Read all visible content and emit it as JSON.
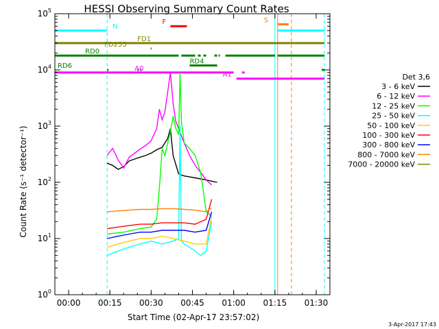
{
  "chart_data": {
    "type": "line",
    "title": "HESSI Observing Summary Count Rates",
    "xlabel": "Start Time (02-Apr-17 23:57:02)",
    "ylabel": "Count Rate (s⁻¹ detector⁻¹)",
    "x_unit": "minutes after 00:00 (03-Apr-17)",
    "xlim": [
      -5,
      95
    ],
    "ylim": [
      1,
      100000
    ],
    "y_scale": "log",
    "grid": false,
    "legend_position": "right",
    "legend_title": "Det 3,6",
    "x_ticks": [
      {
        "value": 0,
        "label": "00:00"
      },
      {
        "value": 15,
        "label": "00:15"
      },
      {
        "value": 30,
        "label": "00:30"
      },
      {
        "value": 45,
        "label": "00:45"
      },
      {
        "value": 60,
        "label": "01:00"
      },
      {
        "value": 75,
        "label": "01:15"
      },
      {
        "value": 90,
        "label": "01:30"
      }
    ],
    "y_ticks": [
      {
        "value": 1,
        "exp": "0"
      },
      {
        "value": 10,
        "exp": "1"
      },
      {
        "value": 100,
        "exp": "2"
      },
      {
        "value": 1000,
        "exp": "3"
      },
      {
        "value": 10000,
        "exp": "4"
      },
      {
        "value": 100000,
        "exp": "5"
      }
    ],
    "series": [
      {
        "name": "3 - 6 keV",
        "color": "#000000",
        "x": [
          14,
          16,
          18,
          20,
          22,
          24,
          26,
          28,
          30,
          32,
          34,
          36,
          37,
          38,
          40,
          42,
          44,
          46,
          48,
          50,
          52,
          54
        ],
        "y": [
          220,
          200,
          170,
          190,
          240,
          260,
          280,
          300,
          330,
          380,
          420,
          600,
          900,
          300,
          140,
          130,
          125,
          120,
          115,
          110,
          105,
          100
        ]
      },
      {
        "name": "6 - 12 keV",
        "color": "#ff00ff",
        "x": [
          14,
          15,
          16,
          17,
          18,
          20,
          22,
          24,
          26,
          28,
          30,
          32,
          33,
          34,
          35,
          36,
          37,
          38,
          39,
          40,
          42,
          44,
          46,
          48,
          50,
          52
        ],
        "y": [
          300,
          350,
          400,
          320,
          250,
          180,
          280,
          330,
          390,
          450,
          550,
          900,
          2000,
          1300,
          1800,
          4000,
          9000,
          2500,
          1200,
          900,
          500,
          300,
          200,
          150,
          110,
          90
        ]
      },
      {
        "name": "12 - 25 keV",
        "color": "#00ff00",
        "x": [
          14,
          20,
          26,
          30,
          32,
          33,
          34,
          35,
          36,
          37,
          38,
          39,
          40,
          40.5,
          41,
          42,
          44,
          46,
          48,
          50,
          52
        ],
        "y": [
          12,
          13,
          15,
          16,
          22,
          80,
          400,
          300,
          500,
          800,
          1500,
          900,
          700,
          9000,
          1200,
          500,
          400,
          300,
          150,
          30,
          25
        ]
      },
      {
        "name": "25 - 50 keV",
        "color": "#00ffff",
        "x": [
          14,
          18,
          22,
          26,
          30,
          34,
          38,
          40,
          40.5,
          41,
          42,
          44,
          46,
          48,
          50,
          52
        ],
        "y": [
          5,
          6,
          7,
          8,
          9,
          8,
          9,
          10,
          1000,
          9,
          8,
          7,
          6,
          5,
          6,
          20
        ]
      },
      {
        "name": "50 - 100 keV",
        "color": "#ffcc00",
        "x": [
          14,
          18,
          22,
          26,
          30,
          34,
          38,
          42,
          46,
          50,
          52
        ],
        "y": [
          7,
          8,
          9,
          10,
          10,
          11,
          10,
          9,
          8,
          8,
          25
        ]
      },
      {
        "name": "100 - 300 keV",
        "color": "#ff0000",
        "x": [
          14,
          18,
          22,
          26,
          30,
          34,
          38,
          42,
          46,
          50,
          52
        ],
        "y": [
          15,
          16,
          17,
          18,
          18,
          19,
          19,
          19,
          18,
          22,
          50
        ]
      },
      {
        "name": "300 - 800 keV",
        "color": "#0000ff",
        "x": [
          14,
          18,
          22,
          26,
          30,
          34,
          38,
          42,
          46,
          50,
          52
        ],
        "y": [
          10,
          11,
          12,
          13,
          13,
          14,
          14,
          14,
          13,
          14,
          30
        ]
      },
      {
        "name": "800 - 7000 keV",
        "color": "#ff8000",
        "x": [
          14,
          18,
          22,
          26,
          30,
          34,
          38,
          42,
          46,
          50,
          52
        ],
        "y": [
          30,
          31,
          32,
          33,
          33,
          34,
          34,
          33,
          32,
          30,
          35
        ]
      },
      {
        "name": "7000 - 20000 keV",
        "color": "#808000",
        "x": [],
        "y": []
      }
    ],
    "flags": [
      {
        "label": "N",
        "color": "#00ffff",
        "y": 50000,
        "segments": [
          [
            -5,
            14
          ],
          [
            76,
            93
          ]
        ],
        "label_x": 16
      },
      {
        "label": "S",
        "color": "#ff8000",
        "y": 65000,
        "segments": [
          [
            76,
            80
          ]
        ],
        "label_x": 71
      },
      {
        "label": "F",
        "color": "#ff0000",
        "y": 60000,
        "segments": [
          [
            37,
            43
          ]
        ],
        "label_x": 34
      },
      {
        "label": "FD1",
        "color": "#808000",
        "y": 30000,
        "segments": [
          [
            -5,
            93
          ]
        ],
        "label_x": 25
      },
      {
        "label": "FD255",
        "color": "#808000",
        "y": 24000,
        "segments": [
          [
            29.8,
            30.2
          ]
        ],
        "label_x": 13
      },
      {
        "label": "RD0",
        "color": "#008000",
        "y": 18000,
        "segments": [
          [
            -5,
            40
          ],
          [
            41,
            46
          ],
          [
            47,
            48
          ],
          [
            49,
            50
          ],
          [
            53,
            54
          ],
          [
            54.5,
            55
          ],
          [
            57,
            75
          ],
          [
            76,
            93
          ]
        ],
        "label_x": 6
      },
      {
        "label": "RD4",
        "color": "#008000",
        "y": 12000,
        "segments": [
          [
            44,
            54
          ]
        ],
        "label_x": 44
      },
      {
        "label": "RD6",
        "color": "#008000",
        "y": 10000,
        "segments": [
          [
            14,
            14.5
          ],
          [
            25,
            25.5
          ],
          [
            26,
            26.5
          ],
          [
            92,
            93
          ]
        ],
        "label_x": -4
      },
      {
        "label": "A0",
        "color": "#ff00ff",
        "y": 9000,
        "segments": [
          [
            -5,
            60
          ]
        ],
        "label_x": 24
      },
      {
        "label": "A1",
        "color": "#ff00ff",
        "y": 7000,
        "segments": [
          [
            61,
            93
          ]
        ],
        "label_x": 56
      },
      {
        "label": "",
        "color": "#ff00ff",
        "y": 9000,
        "segments": [
          [
            63,
            64
          ]
        ],
        "label_x": 0
      }
    ],
    "vlines": [
      {
        "x": 14,
        "color": "#00ffff",
        "style": "dashed"
      },
      {
        "x": 75,
        "color": "#00ffff",
        "style": "solid"
      },
      {
        "x": 76,
        "color": "#ff8000",
        "style": "solid"
      },
      {
        "x": 81,
        "color": "#ff8000",
        "style": "dashed"
      },
      {
        "x": 93,
        "color": "#00ffff",
        "style": "dashed"
      }
    ],
    "footer": "3-Apr-2017 17:43"
  }
}
